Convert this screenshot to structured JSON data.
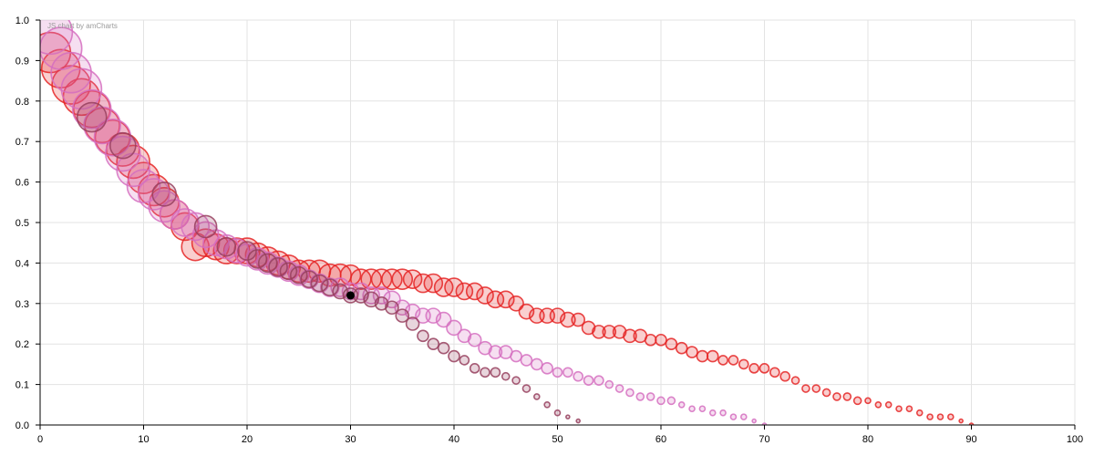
{
  "credit": "JS chart by amCharts",
  "chart_data": {
    "type": "scatter",
    "subtype": "bubble",
    "title": "",
    "xlabel": "",
    "ylabel": "",
    "xlim": [
      0,
      100
    ],
    "ylim": [
      0,
      1
    ],
    "x_ticks": [
      0,
      10,
      20,
      30,
      40,
      50,
      60,
      70,
      80,
      90,
      100
    ],
    "y_ticks": [
      0.0,
      0.1,
      0.2,
      0.3,
      0.4,
      0.5,
      0.6,
      0.7,
      0.8,
      0.9,
      1.0
    ],
    "x_tick_labels": [
      "0",
      "10",
      "20",
      "30",
      "40",
      "50",
      "60",
      "70",
      "80",
      "90",
      "100"
    ],
    "y_tick_labels": [
      "0.0",
      "0.1",
      "0.2",
      "0.3",
      "0.4",
      "0.5",
      "0.6",
      "0.7",
      "0.8",
      "0.9",
      "1.0"
    ],
    "grid": true,
    "legend": false,
    "series": [
      {
        "color": "#e52525",
        "points": [
          {
            "x": 1,
            "y": 0.92,
            "r": 22
          },
          {
            "x": 2,
            "y": 0.88,
            "r": 21
          },
          {
            "x": 3,
            "y": 0.84,
            "r": 21
          },
          {
            "x": 4,
            "y": 0.81,
            "r": 20
          },
          {
            "x": 5,
            "y": 0.78,
            "r": 20
          },
          {
            "x": 6,
            "y": 0.74,
            "r": 19
          },
          {
            "x": 7,
            "y": 0.71,
            "r": 19
          },
          {
            "x": 8,
            "y": 0.68,
            "r": 18
          },
          {
            "x": 9,
            "y": 0.65,
            "r": 18
          },
          {
            "x": 10,
            "y": 0.61,
            "r": 17
          },
          {
            "x": 11,
            "y": 0.58,
            "r": 17
          },
          {
            "x": 12,
            "y": 0.55,
            "r": 16
          },
          {
            "x": 13,
            "y": 0.52,
            "r": 16
          },
          {
            "x": 14,
            "y": 0.49,
            "r": 15
          },
          {
            "x": 15,
            "y": 0.44,
            "r": 15
          },
          {
            "x": 16,
            "y": 0.45,
            "r": 15
          },
          {
            "x": 17,
            "y": 0.44,
            "r": 14
          },
          {
            "x": 18,
            "y": 0.43,
            "r": 14
          },
          {
            "x": 19,
            "y": 0.43,
            "r": 14
          },
          {
            "x": 20,
            "y": 0.43,
            "r": 14
          },
          {
            "x": 21,
            "y": 0.42,
            "r": 13
          },
          {
            "x": 22,
            "y": 0.41,
            "r": 13
          },
          {
            "x": 23,
            "y": 0.4,
            "r": 13
          },
          {
            "x": 24,
            "y": 0.39,
            "r": 13
          },
          {
            "x": 25,
            "y": 0.38,
            "r": 12
          },
          {
            "x": 26,
            "y": 0.38,
            "r": 12
          },
          {
            "x": 27,
            "y": 0.38,
            "r": 12
          },
          {
            "x": 28,
            "y": 0.37,
            "r": 12
          },
          {
            "x": 29,
            "y": 0.37,
            "r": 12
          },
          {
            "x": 30,
            "y": 0.37,
            "r": 11
          },
          {
            "x": 31,
            "y": 0.36,
            "r": 11
          },
          {
            "x": 32,
            "y": 0.36,
            "r": 11
          },
          {
            "x": 33,
            "y": 0.36,
            "r": 11
          },
          {
            "x": 34,
            "y": 0.36,
            "r": 11
          },
          {
            "x": 35,
            "y": 0.36,
            "r": 11
          },
          {
            "x": 36,
            "y": 0.36,
            "r": 10
          },
          {
            "x": 37,
            "y": 0.35,
            "r": 10
          },
          {
            "x": 38,
            "y": 0.35,
            "r": 10
          },
          {
            "x": 39,
            "y": 0.34,
            "r": 10
          },
          {
            "x": 40,
            "y": 0.34,
            "r": 10
          },
          {
            "x": 41,
            "y": 0.33,
            "r": 9
          },
          {
            "x": 42,
            "y": 0.33,
            "r": 9
          },
          {
            "x": 43,
            "y": 0.32,
            "r": 9
          },
          {
            "x": 44,
            "y": 0.31,
            "r": 9
          },
          {
            "x": 45,
            "y": 0.31,
            "r": 9
          },
          {
            "x": 46,
            "y": 0.3,
            "r": 8
          },
          {
            "x": 47,
            "y": 0.28,
            "r": 8
          },
          {
            "x": 48,
            "y": 0.27,
            "r": 8
          },
          {
            "x": 49,
            "y": 0.27,
            "r": 8
          },
          {
            "x": 50,
            "y": 0.27,
            "r": 8
          },
          {
            "x": 51,
            "y": 0.26,
            "r": 8
          },
          {
            "x": 52,
            "y": 0.26,
            "r": 7
          },
          {
            "x": 53,
            "y": 0.24,
            "r": 7
          },
          {
            "x": 54,
            "y": 0.23,
            "r": 7
          },
          {
            "x": 55,
            "y": 0.23,
            "r": 7
          },
          {
            "x": 56,
            "y": 0.23,
            "r": 7
          },
          {
            "x": 57,
            "y": 0.22,
            "r": 7
          },
          {
            "x": 58,
            "y": 0.22,
            "r": 7
          },
          {
            "x": 59,
            "y": 0.21,
            "r": 6
          },
          {
            "x": 60,
            "y": 0.21,
            "r": 6
          },
          {
            "x": 61,
            "y": 0.2,
            "r": 6
          },
          {
            "x": 62,
            "y": 0.19,
            "r": 6
          },
          {
            "x": 63,
            "y": 0.18,
            "r": 6
          },
          {
            "x": 64,
            "y": 0.17,
            "r": 6
          },
          {
            "x": 65,
            "y": 0.17,
            "r": 6
          },
          {
            "x": 66,
            "y": 0.16,
            "r": 5
          },
          {
            "x": 67,
            "y": 0.16,
            "r": 5
          },
          {
            "x": 68,
            "y": 0.15,
            "r": 5
          },
          {
            "x": 69,
            "y": 0.14,
            "r": 5
          },
          {
            "x": 70,
            "y": 0.14,
            "r": 5
          },
          {
            "x": 71,
            "y": 0.13,
            "r": 5
          },
          {
            "x": 72,
            "y": 0.12,
            "r": 5
          },
          {
            "x": 73,
            "y": 0.11,
            "r": 4
          },
          {
            "x": 74,
            "y": 0.09,
            "r": 4
          },
          {
            "x": 75,
            "y": 0.09,
            "r": 4
          },
          {
            "x": 76,
            "y": 0.08,
            "r": 4
          },
          {
            "x": 77,
            "y": 0.07,
            "r": 4
          },
          {
            "x": 78,
            "y": 0.07,
            "r": 4
          },
          {
            "x": 79,
            "y": 0.06,
            "r": 4
          },
          {
            "x": 80,
            "y": 0.06,
            "r": 3
          },
          {
            "x": 81,
            "y": 0.05,
            "r": 3
          },
          {
            "x": 82,
            "y": 0.05,
            "r": 3
          },
          {
            "x": 83,
            "y": 0.04,
            "r": 3
          },
          {
            "x": 84,
            "y": 0.04,
            "r": 3
          },
          {
            "x": 85,
            "y": 0.03,
            "r": 3
          },
          {
            "x": 86,
            "y": 0.02,
            "r": 3
          },
          {
            "x": 87,
            "y": 0.02,
            "r": 3
          },
          {
            "x": 88,
            "y": 0.02,
            "r": 3
          },
          {
            "x": 89,
            "y": 0.01,
            "r": 2
          },
          {
            "x": 90,
            "y": 0.0,
            "r": 2
          }
        ]
      },
      {
        "color": "#d56fc0",
        "points": [
          {
            "x": 1,
            "y": 0.97,
            "r": 24
          },
          {
            "x": 2,
            "y": 0.93,
            "r": 23
          },
          {
            "x": 3,
            "y": 0.87,
            "r": 22
          },
          {
            "x": 4,
            "y": 0.83,
            "r": 22
          },
          {
            "x": 5,
            "y": 0.78,
            "r": 21
          },
          {
            "x": 6,
            "y": 0.74,
            "r": 20
          },
          {
            "x": 7,
            "y": 0.71,
            "r": 20
          },
          {
            "x": 8,
            "y": 0.67,
            "r": 19
          },
          {
            "x": 9,
            "y": 0.63,
            "r": 18
          },
          {
            "x": 10,
            "y": 0.59,
            "r": 18
          },
          {
            "x": 11,
            "y": 0.57,
            "r": 17
          },
          {
            "x": 12,
            "y": 0.54,
            "r": 17
          },
          {
            "x": 13,
            "y": 0.52,
            "r": 16
          },
          {
            "x": 14,
            "y": 0.5,
            "r": 15
          },
          {
            "x": 15,
            "y": 0.49,
            "r": 15
          },
          {
            "x": 16,
            "y": 0.47,
            "r": 14
          },
          {
            "x": 17,
            "y": 0.45,
            "r": 14
          },
          {
            "x": 18,
            "y": 0.44,
            "r": 13
          },
          {
            "x": 19,
            "y": 0.43,
            "r": 13
          },
          {
            "x": 20,
            "y": 0.42,
            "r": 12
          },
          {
            "x": 21,
            "y": 0.41,
            "r": 12
          },
          {
            "x": 22,
            "y": 0.4,
            "r": 12
          },
          {
            "x": 23,
            "y": 0.39,
            "r": 11
          },
          {
            "x": 24,
            "y": 0.38,
            "r": 11
          },
          {
            "x": 25,
            "y": 0.37,
            "r": 11
          },
          {
            "x": 26,
            "y": 0.36,
            "r": 10
          },
          {
            "x": 27,
            "y": 0.35,
            "r": 10
          },
          {
            "x": 28,
            "y": 0.34,
            "r": 10
          },
          {
            "x": 29,
            "y": 0.34,
            "r": 10
          },
          {
            "x": 30,
            "y": 0.33,
            "r": 9
          },
          {
            "x": 31,
            "y": 0.33,
            "r": 9
          },
          {
            "x": 32,
            "y": 0.32,
            "r": 9
          },
          {
            "x": 33,
            "y": 0.32,
            "r": 9
          },
          {
            "x": 34,
            "y": 0.31,
            "r": 9
          },
          {
            "x": 35,
            "y": 0.29,
            "r": 8
          },
          {
            "x": 36,
            "y": 0.28,
            "r": 8
          },
          {
            "x": 37,
            "y": 0.27,
            "r": 8
          },
          {
            "x": 38,
            "y": 0.27,
            "r": 8
          },
          {
            "x": 39,
            "y": 0.26,
            "r": 8
          },
          {
            "x": 40,
            "y": 0.24,
            "r": 8
          },
          {
            "x": 41,
            "y": 0.22,
            "r": 7
          },
          {
            "x": 42,
            "y": 0.21,
            "r": 7
          },
          {
            "x": 43,
            "y": 0.19,
            "r": 7
          },
          {
            "x": 44,
            "y": 0.18,
            "r": 7
          },
          {
            "x": 45,
            "y": 0.18,
            "r": 7
          },
          {
            "x": 46,
            "y": 0.17,
            "r": 6
          },
          {
            "x": 47,
            "y": 0.16,
            "r": 6
          },
          {
            "x": 48,
            "y": 0.15,
            "r": 6
          },
          {
            "x": 49,
            "y": 0.14,
            "r": 6
          },
          {
            "x": 50,
            "y": 0.13,
            "r": 5
          },
          {
            "x": 51,
            "y": 0.13,
            "r": 5
          },
          {
            "x": 52,
            "y": 0.12,
            "r": 5
          },
          {
            "x": 53,
            "y": 0.11,
            "r": 5
          },
          {
            "x": 54,
            "y": 0.11,
            "r": 5
          },
          {
            "x": 55,
            "y": 0.1,
            "r": 4
          },
          {
            "x": 56,
            "y": 0.09,
            "r": 4
          },
          {
            "x": 57,
            "y": 0.08,
            "r": 4
          },
          {
            "x": 58,
            "y": 0.07,
            "r": 4
          },
          {
            "x": 59,
            "y": 0.07,
            "r": 4
          },
          {
            "x": 60,
            "y": 0.06,
            "r": 4
          },
          {
            "x": 61,
            "y": 0.06,
            "r": 4
          },
          {
            "x": 62,
            "y": 0.05,
            "r": 3
          },
          {
            "x": 63,
            "y": 0.04,
            "r": 3
          },
          {
            "x": 64,
            "y": 0.04,
            "r": 3
          },
          {
            "x": 65,
            "y": 0.03,
            "r": 3
          },
          {
            "x": 66,
            "y": 0.03,
            "r": 3
          },
          {
            "x": 67,
            "y": 0.02,
            "r": 3
          },
          {
            "x": 68,
            "y": 0.02,
            "r": 3
          },
          {
            "x": 69,
            "y": 0.01,
            "r": 2
          },
          {
            "x": 70,
            "y": 0.0,
            "r": 2
          }
        ]
      },
      {
        "color": "#96405e",
        "points": [
          {
            "x": 5,
            "y": 0.76,
            "r": 16
          },
          {
            "x": 8,
            "y": 0.69,
            "r": 14
          },
          {
            "x": 12,
            "y": 0.57,
            "r": 13
          },
          {
            "x": 16,
            "y": 0.49,
            "r": 12
          },
          {
            "x": 18,
            "y": 0.44,
            "r": 10
          },
          {
            "x": 20,
            "y": 0.43,
            "r": 10
          },
          {
            "x": 21,
            "y": 0.41,
            "r": 10
          },
          {
            "x": 22,
            "y": 0.4,
            "r": 10
          },
          {
            "x": 23,
            "y": 0.39,
            "r": 10
          },
          {
            "x": 24,
            "y": 0.38,
            "r": 9
          },
          {
            "x": 25,
            "y": 0.37,
            "r": 9
          },
          {
            "x": 26,
            "y": 0.36,
            "r": 9
          },
          {
            "x": 27,
            "y": 0.35,
            "r": 9
          },
          {
            "x": 28,
            "y": 0.34,
            "r": 9
          },
          {
            "x": 29,
            "y": 0.33,
            "r": 8
          },
          {
            "x": 30,
            "y": 0.32,
            "r": 8
          },
          {
            "x": 31,
            "y": 0.32,
            "r": 8
          },
          {
            "x": 32,
            "y": 0.31,
            "r": 8
          },
          {
            "x": 33,
            "y": 0.3,
            "r": 7
          },
          {
            "x": 34,
            "y": 0.29,
            "r": 7
          },
          {
            "x": 35,
            "y": 0.27,
            "r": 7
          },
          {
            "x": 36,
            "y": 0.25,
            "r": 7
          },
          {
            "x": 37,
            "y": 0.22,
            "r": 6
          },
          {
            "x": 38,
            "y": 0.2,
            "r": 6
          },
          {
            "x": 39,
            "y": 0.19,
            "r": 6
          },
          {
            "x": 40,
            "y": 0.17,
            "r": 6
          },
          {
            "x": 41,
            "y": 0.16,
            "r": 5
          },
          {
            "x": 42,
            "y": 0.14,
            "r": 5
          },
          {
            "x": 43,
            "y": 0.13,
            "r": 5
          },
          {
            "x": 44,
            "y": 0.13,
            "r": 5
          },
          {
            "x": 45,
            "y": 0.12,
            "r": 4
          },
          {
            "x": 46,
            "y": 0.11,
            "r": 4
          },
          {
            "x": 47,
            "y": 0.09,
            "r": 4
          },
          {
            "x": 48,
            "y": 0.07,
            "r": 3
          },
          {
            "x": 49,
            "y": 0.05,
            "r": 3
          },
          {
            "x": 50,
            "y": 0.03,
            "r": 3
          },
          {
            "x": 51,
            "y": 0.02,
            "r": 2
          },
          {
            "x": 52,
            "y": 0.01,
            "r": 2
          }
        ]
      }
    ],
    "highlight_point": {
      "x": 30,
      "y": 0.32,
      "color": "#000000"
    }
  }
}
